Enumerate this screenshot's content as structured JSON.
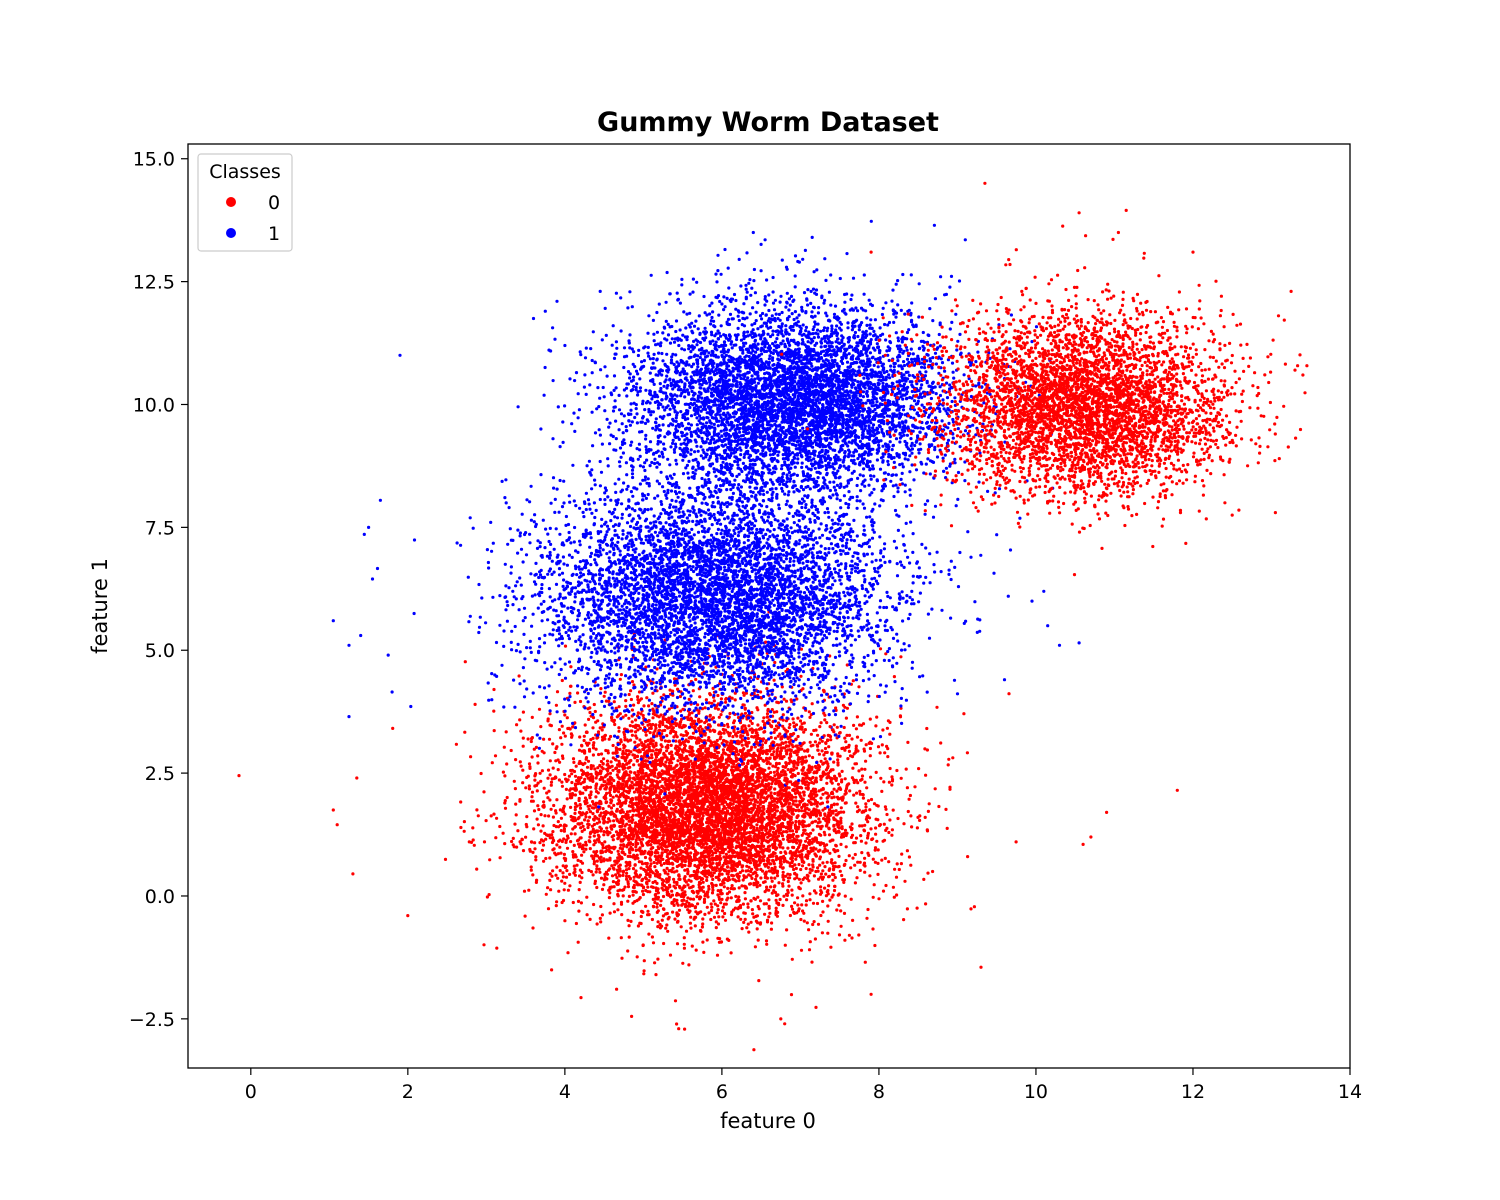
{
  "chart_data": {
    "type": "scatter",
    "title": "Gummy Worm Dataset",
    "xlabel": "feature 0",
    "ylabel": "feature 1",
    "xlim": [
      -0.8,
      14.0
    ],
    "ylim": [
      -3.5,
      15.3
    ],
    "x_ticks": [
      0,
      2,
      4,
      6,
      8,
      10,
      12,
      14
    ],
    "x_tick_labels": [
      "0",
      "2",
      "4",
      "6",
      "8",
      "10",
      "12",
      "14"
    ],
    "y_ticks": [
      -2.5,
      0.0,
      2.5,
      5.0,
      7.5,
      10.0,
      12.5,
      15.0
    ],
    "y_tick_labels": [
      "−2.5",
      "0.0",
      "2.5",
      "5.0",
      "7.5",
      "10.0",
      "12.5",
      "15.0"
    ],
    "grid": false,
    "legend": {
      "title": "Classes",
      "placement": "top-left",
      "entries": [
        {
          "label": "0",
          "color": "#ff0000"
        },
        {
          "label": "1",
          "color": "#0000ff"
        }
      ]
    },
    "series": [
      {
        "name": "0",
        "color": "#ff0000",
        "clusters": [
          {
            "center": [
              5.8,
              1.8
            ],
            "std": [
              1.0,
              1.1
            ],
            "weight": 0.62
          },
          {
            "center": [
              10.6,
              10.0
            ],
            "std": [
              0.9,
              0.9
            ],
            "weight": 0.38
          }
        ],
        "points": [
          [
            -0.15,
            2.45
          ],
          [
            1.05,
            1.75
          ],
          [
            1.1,
            1.45
          ],
          [
            1.3,
            0.45
          ],
          [
            1.35,
            2.4
          ],
          [
            2.0,
            -0.4
          ],
          [
            9.35,
            14.5
          ],
          [
            10.55,
            13.9
          ],
          [
            11.15,
            13.95
          ],
          [
            11.05,
            13.5
          ],
          [
            13.25,
            12.3
          ],
          [
            13.3,
            10.7
          ],
          [
            13.4,
            10.6
          ],
          [
            13.1,
            8.9
          ],
          [
            13.05,
            7.8
          ],
          [
            4.85,
            -2.45
          ],
          [
            5.45,
            -2.7
          ],
          [
            6.75,
            -2.5
          ],
          [
            6.8,
            -2.6
          ],
          [
            7.9,
            -2.0
          ],
          [
            9.3,
            -1.45
          ],
          [
            11.8,
            2.15
          ],
          [
            10.9,
            1.7
          ],
          [
            10.6,
            1.05
          ],
          [
            10.7,
            1.2
          ],
          [
            12.5,
            7.75
          ],
          [
            12.0,
            13.1
          ],
          [
            9.75,
            13.15
          ],
          [
            7.9,
            13.1
          ],
          [
            12.8,
            9.2
          ]
        ]
      },
      {
        "name": "1",
        "color": "#0000ff",
        "clusters": [
          {
            "center": [
              6.9,
              10.1
            ],
            "std": [
              1.05,
              0.95
            ],
            "weight": 0.5
          },
          {
            "center": [
              5.9,
              6.1
            ],
            "std": [
              1.1,
              1.15
            ],
            "weight": 0.5
          }
        ],
        "points": [
          [
            1.9,
            11.0
          ],
          [
            1.05,
            5.6
          ],
          [
            1.25,
            3.65
          ],
          [
            1.5,
            7.5
          ],
          [
            1.55,
            6.45
          ],
          [
            1.65,
            8.05
          ],
          [
            1.75,
            4.9
          ],
          [
            1.8,
            4.15
          ],
          [
            1.25,
            5.1
          ],
          [
            1.4,
            5.3
          ],
          [
            6.4,
            13.5
          ],
          [
            7.15,
            13.4
          ],
          [
            9.1,
            13.35
          ],
          [
            6.55,
            13.35
          ],
          [
            10.3,
            5.1
          ],
          [
            10.55,
            5.15
          ],
          [
            10.15,
            5.5
          ],
          [
            9.95,
            6.0
          ],
          [
            10.1,
            6.2
          ],
          [
            9.6,
            4.4
          ],
          [
            9.5,
            7.35
          ],
          [
            3.6,
            11.75
          ],
          [
            4.45,
            12.3
          ],
          [
            3.9,
            12.1
          ],
          [
            4.0,
            11.2
          ]
        ]
      }
    ]
  }
}
